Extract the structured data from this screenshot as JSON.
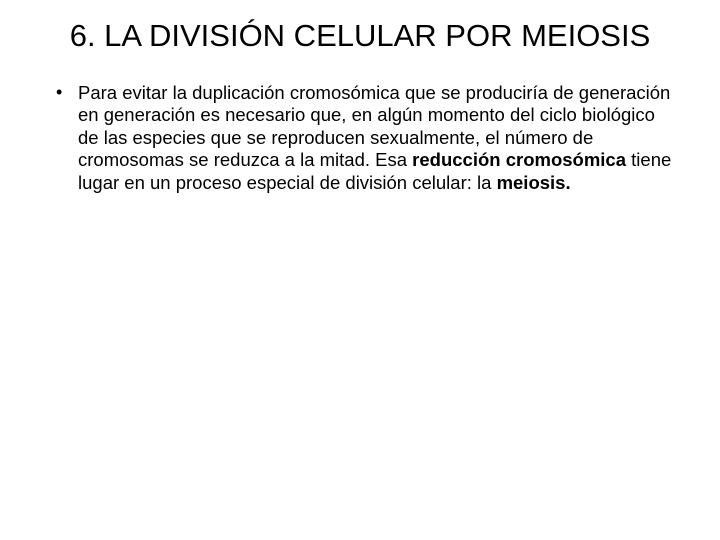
{
  "slide": {
    "title": "6. LA DIVISIÓN CELULAR POR MEIOSIS",
    "bullet": {
      "seg1": "Para evitar la duplicación cromosómica que se produciría de generación en generación es necesario que, en algún momento del ciclo biológico de las especies que se reproducen sexualmente, el número de cromosomas se reduzca a la mitad. Esa ",
      "seg2": "reducción cromosómica ",
      "seg3": "tiene lugar en un proceso especial de división celular: la ",
      "seg4": "meiosis."
    }
  },
  "style": {
    "background_color": "#ffffff",
    "text_color": "#000000",
    "title_fontsize": 31,
    "body_fontsize": 18.5,
    "font_family": "Arial"
  }
}
